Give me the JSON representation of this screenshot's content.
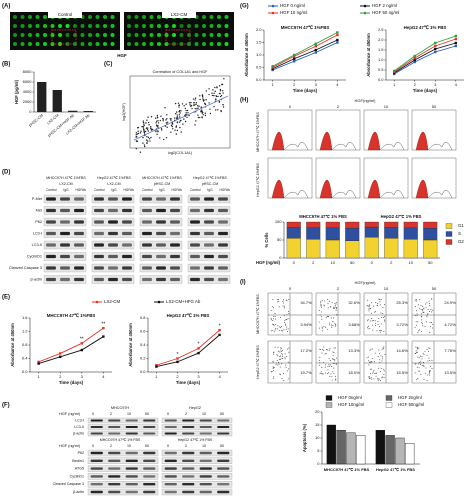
{
  "figure": {
    "panels": [
      "(A)",
      "(B)",
      "(C)",
      "(D)",
      "(E)",
      "(F)",
      "(G)",
      "(H)",
      "(I)"
    ],
    "A": {
      "left": "Control",
      "right": "LX2-CM",
      "bottom": "HGF"
    },
    "C": {
      "title": "Correlation of COL1A1 and HGF",
      "x_label": "log2(COL1A1)",
      "y_label": "log2(HGF)"
    },
    "D": {
      "groups": [
        "MHCC97H 47℃ 1%FBS",
        "HepG2 47℃ 1%FBS",
        "MHCC97H 47℃ 1%FBS",
        "HepG2 47℃ 1%FBS"
      ],
      "sub": [
        "LX2-CM",
        "LX2-CM",
        "pHSC-CM",
        "pHSC-CM"
      ],
      "lanes": [
        "Control",
        "IgG",
        "HGFAb"
      ],
      "rows": [
        "P-Met",
        "Met",
        "P62",
        "LC3-I",
        "LC3-II",
        "CyclinD1",
        "Cleaved Caspase 3",
        "β-actin"
      ]
    },
    "F": {
      "conc_label": "HGF (ng/ml)",
      "cells": [
        "MHCC97H",
        "HepG2"
      ],
      "conc": [
        "0",
        "2",
        "10",
        "50"
      ],
      "rows_top": [
        "LC3-I",
        "LC3-II",
        "β-actin"
      ],
      "groups_bottom": [
        "MHCC97H 47℃ 1% FBS",
        "HepG2 47℃ 1% FBS"
      ],
      "rows_bottom": [
        "P62",
        "Beclin1",
        "ATG5",
        "CyclinD1",
        "Cleaved Caspase 3",
        "β-actin"
      ]
    },
    "H": {
      "header": "HGF(ng/ml)",
      "conc": [
        "0",
        "2",
        "10",
        "50"
      ],
      "rows": [
        "MHCC97H 47℃ 1%FBS",
        "HepG2 47℃ 1%FBS"
      ]
    },
    "I": {
      "header": "HGF(ng/ml)",
      "conc": [
        "0",
        "2",
        "10",
        "50"
      ],
      "rows": [
        "MHCC97H 47℃ 1%FBS",
        "HepG2 47℃ 1%FBS"
      ],
      "quadrants": [
        [
          "34.7%",
          "3.94%"
        ],
        [
          "32.6%",
          "3.68%"
        ],
        [
          "25.3%",
          "3.72%"
        ],
        [
          "24.9%",
          "4.72%"
        ],
        [
          "17.2%",
          "19.7%"
        ],
        [
          "13.3%",
          "18.0%"
        ],
        [
          "14.6%",
          "15.5%"
        ],
        [
          "7.76%",
          "13.5%"
        ]
      ]
    }
  },
  "chart_data": [
    {
      "type": "bar",
      "y_label": "HGF (pg/ml)",
      "categories": [
        "pHSC-CM",
        "LX2-CM",
        "pHSC-CM+HGF Ab",
        "LX2-CM+HGF Ab"
      ],
      "values": [
        6000,
        4400,
        250,
        200
      ],
      "color": "#222222",
      "ylim": [
        0,
        8000
      ],
      "yticks": [
        0,
        2000,
        4000,
        6000,
        8000
      ]
    },
    {
      "type": "line",
      "title": "MHCC97H 47℃ 1%FBS",
      "x_label": "Time (days)",
      "y_label": "Absorbance at 450nm",
      "x": [
        1,
        2,
        3,
        4
      ],
      "xlim": [
        0.6,
        4.4
      ],
      "xticks": [
        1,
        2,
        3,
        4
      ],
      "ylim": [
        0,
        1.6
      ],
      "yticks": [
        {
          "value": 0,
          "label": "0.0"
        },
        0.4,
        0.8,
        1.2,
        1.6
      ],
      "series": [
        {
          "name": "LX2-CM",
          "color": "#e8332a",
          "values": [
            0.3,
            0.55,
            0.85,
            1.3
          ]
        },
        {
          "name": "LX2-CM+HFG Ab",
          "color": "#111111",
          "values": [
            0.25,
            0.45,
            0.65,
            1.05
          ]
        }
      ],
      "annotations": [
        "**",
        "**"
      ]
    },
    {
      "type": "line",
      "title": "HepG2 47℃ 1% FBS",
      "x_label": "Time (days)",
      "y_label": "Absorbance at 450nm",
      "x": [
        1,
        2,
        3,
        4
      ],
      "xlim": [
        0.6,
        4.4
      ],
      "xticks": [
        1,
        2,
        3,
        4
      ],
      "ylim": [
        0,
        0.8
      ],
      "yticks": [
        {
          "value": 0,
          "label": "0.0"
        },
        0.2,
        0.4,
        0.6,
        0.8
      ],
      "series": [
        {
          "color": "#e8332a",
          "values": [
            0.1,
            0.2,
            0.35,
            0.62
          ]
        },
        {
          "color": "#111111",
          "values": [
            0.08,
            0.15,
            0.28,
            0.55
          ]
        }
      ],
      "annotations": [
        "*",
        "*",
        "*"
      ]
    },
    {
      "type": "line",
      "title": "MHCC97H 47℃ 1%FBS",
      "x_label": "Time (days)",
      "y_label": "Absorbance at 450nm",
      "x": [
        1,
        2,
        3,
        4
      ],
      "xlim": [
        0.6,
        4.4
      ],
      "xticks": [
        1,
        2,
        3,
        4
      ],
      "ylim": [
        0,
        2
      ],
      "yticks": [
        {
          "value": 0,
          "label": "0.0"
        },
        0.5,
        {
          "value": 1,
          "label": "1.0"
        },
        1.5,
        {
          "value": 2,
          "label": "2.0"
        }
      ],
      "series": [
        {
          "name": "HGF 0 ng/ml",
          "color": "#1f5fbf",
          "values": [
            0.4,
            0.75,
            1.1,
            1.5
          ]
        },
        {
          "name": "HGF 2 ng/ml",
          "color": "#111111",
          "values": [
            0.45,
            0.85,
            1.2,
            1.6
          ]
        },
        {
          "name": "HGF 10 ng/ml",
          "color": "#e8332a",
          "values": [
            0.5,
            0.95,
            1.35,
            1.8
          ]
        },
        {
          "name": "HGF 50 ng/ml",
          "color": "#2e9e3a",
          "values": [
            0.55,
            1.0,
            1.45,
            1.9
          ]
        }
      ]
    },
    {
      "type": "line",
      "title": "HepG2 47℃ 1% FBS",
      "x_label": "Time (days)",
      "y_label": "Absorbance at 450nm",
      "x": [
        1,
        2,
        3,
        4
      ],
      "xlim": [
        0.6,
        4.4
      ],
      "xticks": [
        1,
        2,
        3,
        4
      ],
      "ylim": [
        0,
        2.5
      ],
      "yticks": [
        {
          "value": 0,
          "label": "0.0"
        },
        0.5,
        {
          "value": 1,
          "label": "1.0"
        },
        1.5,
        {
          "value": 2,
          "label": "2.0"
        },
        2.5
      ],
      "series": [
        {
          "color": "#1f5fbf",
          "values": [
            0.3,
            0.9,
            1.4,
            1.7
          ]
        },
        {
          "color": "#111111",
          "values": [
            0.35,
            1.0,
            1.55,
            1.85
          ]
        },
        {
          "color": "#e8332a",
          "values": [
            0.4,
            1.1,
            1.7,
            2.05
          ]
        },
        {
          "color": "#2e9e3a",
          "values": [
            0.45,
            1.2,
            1.85,
            2.2
          ]
        }
      ]
    },
    {
      "type": "stacked_bar",
      "y_label": "% Cells",
      "x_label": "HGF (ng/ml)",
      "categories": [
        "0",
        "2",
        "10",
        "50",
        "0",
        "2",
        "10",
        "50"
      ],
      "group_labels": [
        "MHCC97H 47℃ 1% FBS",
        "HepG2 47℃ 1% FBS"
      ],
      "ylim": [
        0,
        100
      ],
      "yticks": [
        0,
        50,
        100
      ],
      "series": [
        {
          "name": "G1",
          "color": "#f2d22e",
          "values": [
            55,
            52,
            50,
            48,
            58,
            55,
            52,
            50
          ]
        },
        {
          "name": "S",
          "color": "#2f4f9f",
          "values": [
            30,
            32,
            34,
            35,
            28,
            30,
            32,
            33
          ]
        },
        {
          "name": "G2",
          "color": "#d9342b",
          "values": [
            15,
            16,
            16,
            17,
            14,
            15,
            16,
            17
          ]
        }
      ]
    },
    {
      "type": "grouped_bar",
      "y_label": "Apoptosis (%)",
      "categories": [
        "MHCC97H 47℃ 1% FBS",
        "HepG2 47℃ 1% FBS"
      ],
      "ylim": [
        0,
        20
      ],
      "yticks": [
        0,
        5,
        10,
        15,
        20
      ],
      "series": [
        {
          "name": "HGF 0ng/ml",
          "color": "#111111",
          "values": [
            15,
            13
          ]
        },
        {
          "name": "HGF 2ng/ml",
          "color": "#666666",
          "values": [
            13,
            11
          ]
        },
        {
          "name": "HGF 10ng/ml",
          "color": "#b5b5b5",
          "values": [
            12,
            10
          ]
        },
        {
          "name": "HGF 50ng/ml",
          "color": "#ffffff",
          "values": [
            11,
            8
          ]
        }
      ]
    }
  ]
}
